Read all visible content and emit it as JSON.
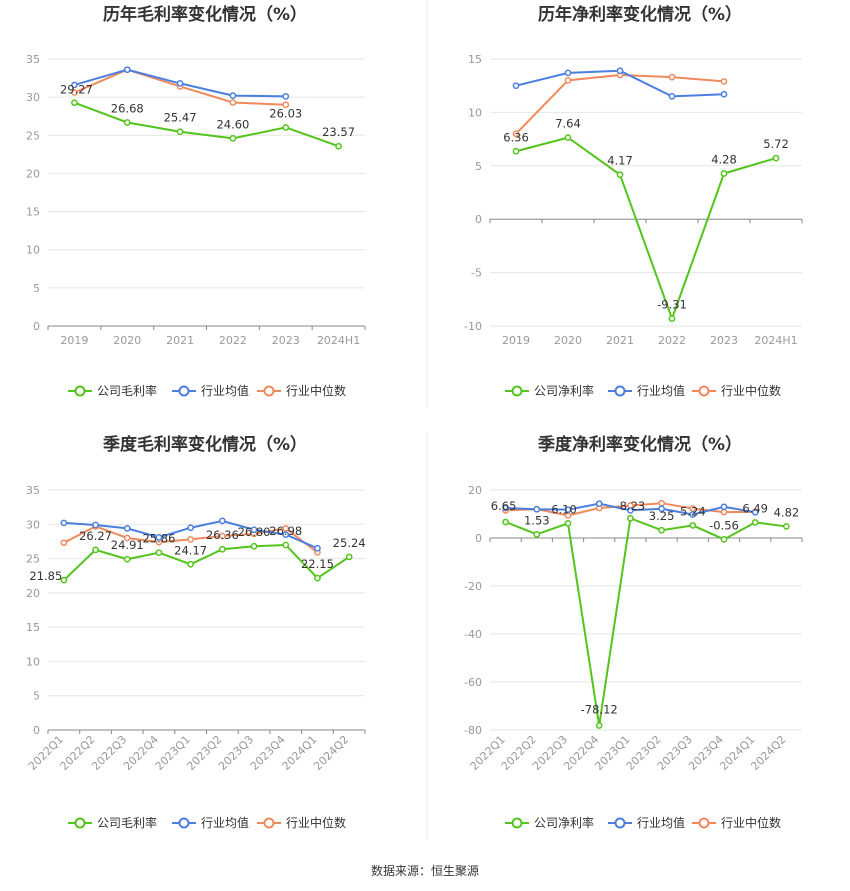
{
  "colors": {
    "company": "#52c41a",
    "industry_avg": "#4a7fe0",
    "industry_median": "#f08a5d",
    "grid": "#e6e6e6",
    "axis": "#666666"
  },
  "source_text": "数据来源：恒生聚源",
  "chart_data": [
    {
      "type": "line",
      "title": "历年毛利率变化情况（%）",
      "categories": [
        "2019",
        "2020",
        "2021",
        "2022",
        "2023",
        "2024H1"
      ],
      "ylim": [
        0,
        35
      ],
      "yticks": [
        0,
        5,
        10,
        15,
        20,
        25,
        30,
        35
      ],
      "series": [
        {
          "name": "公司毛利率",
          "key": "company",
          "values": [
            29.27,
            26.68,
            25.47,
            24.6,
            26.03,
            23.57
          ],
          "labels": [
            "29.27",
            "26.68",
            "25.47",
            "24.60",
            "26.03",
            "23.57"
          ]
        },
        {
          "name": "行业均值",
          "key": "industry_avg",
          "values": [
            31.6,
            33.6,
            31.8,
            30.2,
            30.1,
            null
          ]
        },
        {
          "name": "行业中位数",
          "key": "industry_median",
          "values": [
            30.6,
            33.6,
            31.4,
            29.3,
            29.0,
            null
          ]
        }
      ]
    },
    {
      "type": "line",
      "title": "历年净利率变化情况（%）",
      "categories": [
        "2019",
        "2020",
        "2021",
        "2022",
        "2023",
        "2024H1"
      ],
      "ylim": [
        -10,
        15
      ],
      "yticks": [
        -10,
        -5,
        0,
        5,
        10,
        15
      ],
      "series": [
        {
          "name": "公司净利率",
          "key": "company",
          "values": [
            6.36,
            7.64,
            4.17,
            -9.31,
            4.28,
            5.72
          ],
          "labels": [
            "6.36",
            "7.64",
            "4.17",
            "-9.31",
            "4.28",
            "5.72"
          ]
        },
        {
          "name": "行业均值",
          "key": "industry_avg",
          "values": [
            12.5,
            13.7,
            13.9,
            11.5,
            11.7,
            null
          ]
        },
        {
          "name": "行业中位数",
          "key": "industry_median",
          "values": [
            8.0,
            13.0,
            13.5,
            13.3,
            12.9,
            null
          ]
        }
      ]
    },
    {
      "type": "line",
      "title": "季度毛利率变化情况（%）",
      "categories": [
        "2022Q1",
        "2022Q2",
        "2022Q3",
        "2022Q4",
        "2023Q1",
        "2023Q2",
        "2023Q3",
        "2023Q4",
        "2024Q1",
        "2024Q2"
      ],
      "ylim": [
        0,
        35
      ],
      "yticks": [
        0,
        5,
        10,
        15,
        20,
        25,
        30,
        35
      ],
      "series": [
        {
          "name": "公司毛利率",
          "key": "company",
          "values": [
            21.85,
            26.27,
            24.91,
            25.86,
            24.17,
            26.36,
            26.8,
            26.98,
            22.15,
            25.24
          ],
          "labels": [
            "21.85",
            "26.27",
            "24.91",
            "25.86",
            "24.17",
            "26.36",
            "26.80",
            "26.98",
            "22.15",
            "25.24"
          ]
        },
        {
          "name": "行业均值",
          "key": "industry_avg",
          "values": [
            30.2,
            29.9,
            29.4,
            28.1,
            29.5,
            30.5,
            29.2,
            28.5,
            26.5,
            null
          ]
        },
        {
          "name": "行业中位数",
          "key": "industry_median",
          "values": [
            27.3,
            29.7,
            28.0,
            27.4,
            27.8,
            28.3,
            28.6,
            29.4,
            25.9,
            null
          ]
        }
      ]
    },
    {
      "type": "line",
      "title": "季度净利率变化情况（%）",
      "categories": [
        "2022Q1",
        "2022Q2",
        "2022Q3",
        "2022Q4",
        "2023Q1",
        "2023Q2",
        "2023Q3",
        "2023Q4",
        "2024Q1",
        "2024Q2"
      ],
      "ylim": [
        -80,
        20
      ],
      "yticks": [
        -80,
        -60,
        -40,
        -20,
        0,
        20
      ],
      "series": [
        {
          "name": "公司净利率",
          "key": "company",
          "values": [
            6.65,
            1.53,
            6.1,
            -78.12,
            8.23,
            3.25,
            5.24,
            -0.56,
            6.49,
            4.82
          ],
          "labels": [
            "6.65",
            "1.53",
            "6.10",
            "-78.12",
            "8.23",
            "3.25",
            "5.24",
            "-0.56",
            "6.49",
            "4.82"
          ]
        },
        {
          "name": "行业均值",
          "key": "industry_avg",
          "values": [
            12.5,
            12.0,
            11.8,
            14.3,
            11.5,
            12.2,
            9.8,
            13.0,
            10.7,
            null
          ]
        },
        {
          "name": "行业中位数",
          "key": "industry_median",
          "values": [
            11.5,
            12.0,
            9.4,
            12.5,
            13.5,
            14.5,
            12.3,
            10.8,
            10.9,
            null
          ]
        }
      ]
    }
  ]
}
